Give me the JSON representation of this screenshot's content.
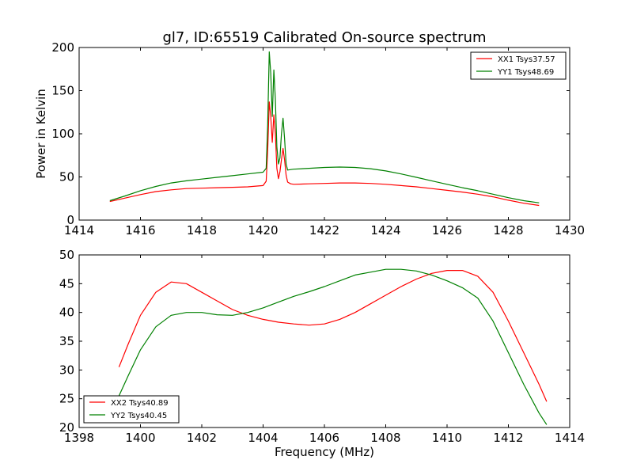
{
  "figure": {
    "title": "gl7, ID:65519 Calibrated On-source spectrum"
  },
  "chart_data": [
    {
      "type": "line",
      "title": "gl7, ID:65519 Calibrated On-source spectrum",
      "xlabel": "",
      "ylabel": "Power in Kelvin",
      "xlim": [
        1414,
        1430
      ],
      "ylim": [
        0,
        200
      ],
      "xticks": [
        1414,
        1416,
        1418,
        1420,
        1422,
        1424,
        1426,
        1428,
        1430
      ],
      "yticks": [
        0,
        50,
        100,
        150,
        200
      ],
      "grid": false,
      "legend_position": "top-right",
      "series": [
        {
          "name": "XX1 Tsys37.57",
          "color": "#ff0000",
          "x": [
            1415.0,
            1415.5,
            1416.0,
            1416.5,
            1417.0,
            1417.5,
            1418.0,
            1418.5,
            1419.0,
            1419.5,
            1420.0,
            1420.1,
            1420.15,
            1420.2,
            1420.25,
            1420.3,
            1420.35,
            1420.4,
            1420.45,
            1420.5,
            1420.55,
            1420.6,
            1420.65,
            1420.7,
            1420.75,
            1420.8,
            1420.9,
            1421.0,
            1421.5,
            1422.0,
            1422.5,
            1423.0,
            1423.5,
            1424.0,
            1424.5,
            1425.0,
            1425.5,
            1426.0,
            1426.5,
            1427.0,
            1427.5,
            1428.0,
            1428.5,
            1429.0
          ],
          "values": [
            21.5,
            25.5,
            29.5,
            33.0,
            35.0,
            36.5,
            37.0,
            37.5,
            38.0,
            38.5,
            40.0,
            45.0,
            80.0,
            137.0,
            120.0,
            90.0,
            122.0,
            100.0,
            60.0,
            48.0,
            56.0,
            70.0,
            83.0,
            70.0,
            52.0,
            44.0,
            42.0,
            41.5,
            42.0,
            42.5,
            43.0,
            43.0,
            42.5,
            41.5,
            40.0,
            38.5,
            36.5,
            34.5,
            32.5,
            30.0,
            27.0,
            23.0,
            19.5,
            17.0
          ]
        },
        {
          "name": "YY1 Tsys48.69",
          "color": "#008000",
          "x": [
            1415.0,
            1415.5,
            1416.0,
            1416.5,
            1417.0,
            1417.5,
            1418.0,
            1418.5,
            1419.0,
            1419.5,
            1420.0,
            1420.1,
            1420.15,
            1420.2,
            1420.25,
            1420.3,
            1420.35,
            1420.4,
            1420.45,
            1420.5,
            1420.55,
            1420.6,
            1420.65,
            1420.7,
            1420.75,
            1420.8,
            1420.9,
            1421.0,
            1421.5,
            1422.0,
            1422.5,
            1423.0,
            1423.5,
            1424.0,
            1424.5,
            1425.0,
            1425.5,
            1426.0,
            1426.5,
            1427.0,
            1427.5,
            1428.0,
            1428.5,
            1429.0
          ],
          "values": [
            22.5,
            28.0,
            34.0,
            39.0,
            43.0,
            45.5,
            47.5,
            49.5,
            51.5,
            53.5,
            55.5,
            60.0,
            110.0,
            195.0,
            170.0,
            120.0,
            174.0,
            140.0,
            85.0,
            65.0,
            72.0,
            100.0,
            118.0,
            95.0,
            65.0,
            58.0,
            58.5,
            59.0,
            60.0,
            61.0,
            61.5,
            61.0,
            59.5,
            57.0,
            53.5,
            49.5,
            45.5,
            41.5,
            37.5,
            34.0,
            30.0,
            26.0,
            22.5,
            20.0
          ]
        }
      ]
    },
    {
      "type": "line",
      "title": "",
      "xlabel": "Frequency (MHz)",
      "ylabel": "",
      "xlim": [
        1398,
        1414
      ],
      "ylim": [
        20,
        50
      ],
      "xticks": [
        1398,
        1400,
        1402,
        1404,
        1406,
        1408,
        1410,
        1412,
        1414
      ],
      "yticks": [
        20,
        25,
        30,
        35,
        40,
        45,
        50
      ],
      "grid": false,
      "legend_position": "bottom-left",
      "series": [
        {
          "name": "XX2 Tsys40.89",
          "color": "#ff0000",
          "x": [
            1399.3,
            1399.6,
            1400.0,
            1400.5,
            1401.0,
            1401.5,
            1402.0,
            1402.5,
            1403.0,
            1403.5,
            1404.0,
            1404.5,
            1405.0,
            1405.5,
            1406.0,
            1406.5,
            1407.0,
            1407.5,
            1408.0,
            1408.5,
            1409.0,
            1409.5,
            1410.0,
            1410.5,
            1411.0,
            1411.5,
            1412.0,
            1412.5,
            1413.0,
            1413.25
          ],
          "values": [
            30.5,
            34.5,
            39.5,
            43.5,
            45.3,
            45.0,
            43.5,
            42.0,
            40.5,
            39.5,
            38.8,
            38.3,
            38.0,
            37.8,
            38.0,
            38.8,
            40.0,
            41.5,
            43.0,
            44.5,
            45.8,
            46.8,
            47.3,
            47.3,
            46.3,
            43.5,
            38.5,
            33.0,
            27.5,
            24.5
          ]
        },
        {
          "name": "YY2 Tsys40.45",
          "color": "#008000",
          "x": [
            1399.3,
            1399.6,
            1400.0,
            1400.5,
            1401.0,
            1401.5,
            1402.0,
            1402.5,
            1403.0,
            1403.5,
            1404.0,
            1404.5,
            1405.0,
            1405.5,
            1406.0,
            1406.5,
            1407.0,
            1407.5,
            1408.0,
            1408.5,
            1409.0,
            1409.5,
            1410.0,
            1410.5,
            1411.0,
            1411.5,
            1412.0,
            1412.5,
            1413.0,
            1413.25
          ],
          "values": [
            25.5,
            29.0,
            33.5,
            37.5,
            39.5,
            40.0,
            40.0,
            39.6,
            39.5,
            40.0,
            40.8,
            41.8,
            42.8,
            43.6,
            44.5,
            45.5,
            46.5,
            47.0,
            47.5,
            47.5,
            47.2,
            46.5,
            45.5,
            44.3,
            42.5,
            38.5,
            33.0,
            27.5,
            22.5,
            20.5
          ]
        }
      ]
    }
  ]
}
